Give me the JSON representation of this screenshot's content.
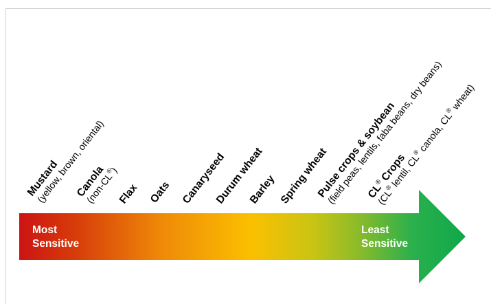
{
  "diagram": {
    "arrow": {
      "start_label_line1": "Most",
      "start_label_line2": "Sensitive",
      "end_label_line1": "Least",
      "end_label_line2": "Sensitive",
      "colors": [
        "#cc1414",
        "#d63a0a",
        "#ef8a08",
        "#fbc000",
        "#c8c414",
        "#8bbb2a",
        "#2bb04c",
        "#0fa84a"
      ]
    },
    "crops": [
      {
        "name": "Mustard",
        "detail": "(yellow, brown, oriental)"
      },
      {
        "name": "Canola",
        "detail_prefix": "(non-CL",
        "detail_sup": "®",
        "detail_suffix": ")"
      },
      {
        "name": "Flax"
      },
      {
        "name": "Oats"
      },
      {
        "name": "Canaryseed"
      },
      {
        "name": "Durum wheat"
      },
      {
        "name": "Barley"
      },
      {
        "name": "Spring wheat"
      },
      {
        "name": "Pulse crops & soybean",
        "detail": "(field peas, lentils, faba beans, dry beans)"
      },
      {
        "name_prefix": "CL",
        "name_sup": "®",
        "name_suffix": " Crops",
        "detail_a": "(CL",
        "detail_sup_a": "®",
        "detail_b": " lentil, CL",
        "detail_sup_b": "®",
        "detail_c": " canola, CL",
        "detail_sup_c": "®",
        "detail_d": " wheat)"
      }
    ]
  }
}
